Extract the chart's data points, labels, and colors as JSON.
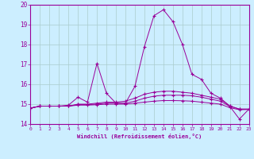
{
  "xlabel": "Windchill (Refroidissement éolien,°C)",
  "background_color": "#cceeff",
  "grid_color": "#aacccc",
  "line_color": "#990099",
  "xlim": [
    0,
    23
  ],
  "ylim": [
    14,
    20
  ],
  "xticks": [
    0,
    1,
    2,
    3,
    4,
    5,
    6,
    7,
    8,
    9,
    10,
    11,
    12,
    13,
    14,
    15,
    16,
    17,
    18,
    19,
    20,
    21,
    22,
    23
  ],
  "yticks": [
    14,
    15,
    16,
    17,
    18,
    19,
    20
  ],
  "series": [
    [
      14.8,
      14.9,
      14.9,
      14.9,
      14.95,
      15.35,
      15.1,
      17.05,
      15.55,
      15.05,
      15.05,
      15.9,
      17.9,
      19.45,
      19.75,
      19.15,
      18.0,
      16.5,
      16.25,
      15.55,
      15.3,
      14.9,
      14.75,
      14.75
    ],
    [
      14.8,
      14.9,
      14.9,
      14.9,
      14.9,
      15.0,
      15.0,
      15.05,
      15.1,
      15.1,
      15.15,
      15.3,
      15.5,
      15.6,
      15.65,
      15.65,
      15.6,
      15.55,
      15.45,
      15.35,
      15.25,
      14.9,
      14.75,
      14.75
    ],
    [
      14.8,
      14.9,
      14.9,
      14.9,
      14.9,
      14.98,
      14.98,
      15.0,
      15.05,
      15.05,
      15.05,
      15.15,
      15.3,
      15.4,
      15.45,
      15.45,
      15.45,
      15.42,
      15.35,
      15.25,
      15.15,
      14.88,
      14.25,
      14.75
    ],
    [
      14.8,
      14.9,
      14.9,
      14.9,
      14.9,
      14.95,
      14.95,
      14.97,
      15.0,
      15.0,
      15.0,
      15.05,
      15.1,
      15.15,
      15.18,
      15.18,
      15.17,
      15.15,
      15.1,
      15.05,
      15.0,
      14.82,
      14.72,
      14.73
    ]
  ]
}
